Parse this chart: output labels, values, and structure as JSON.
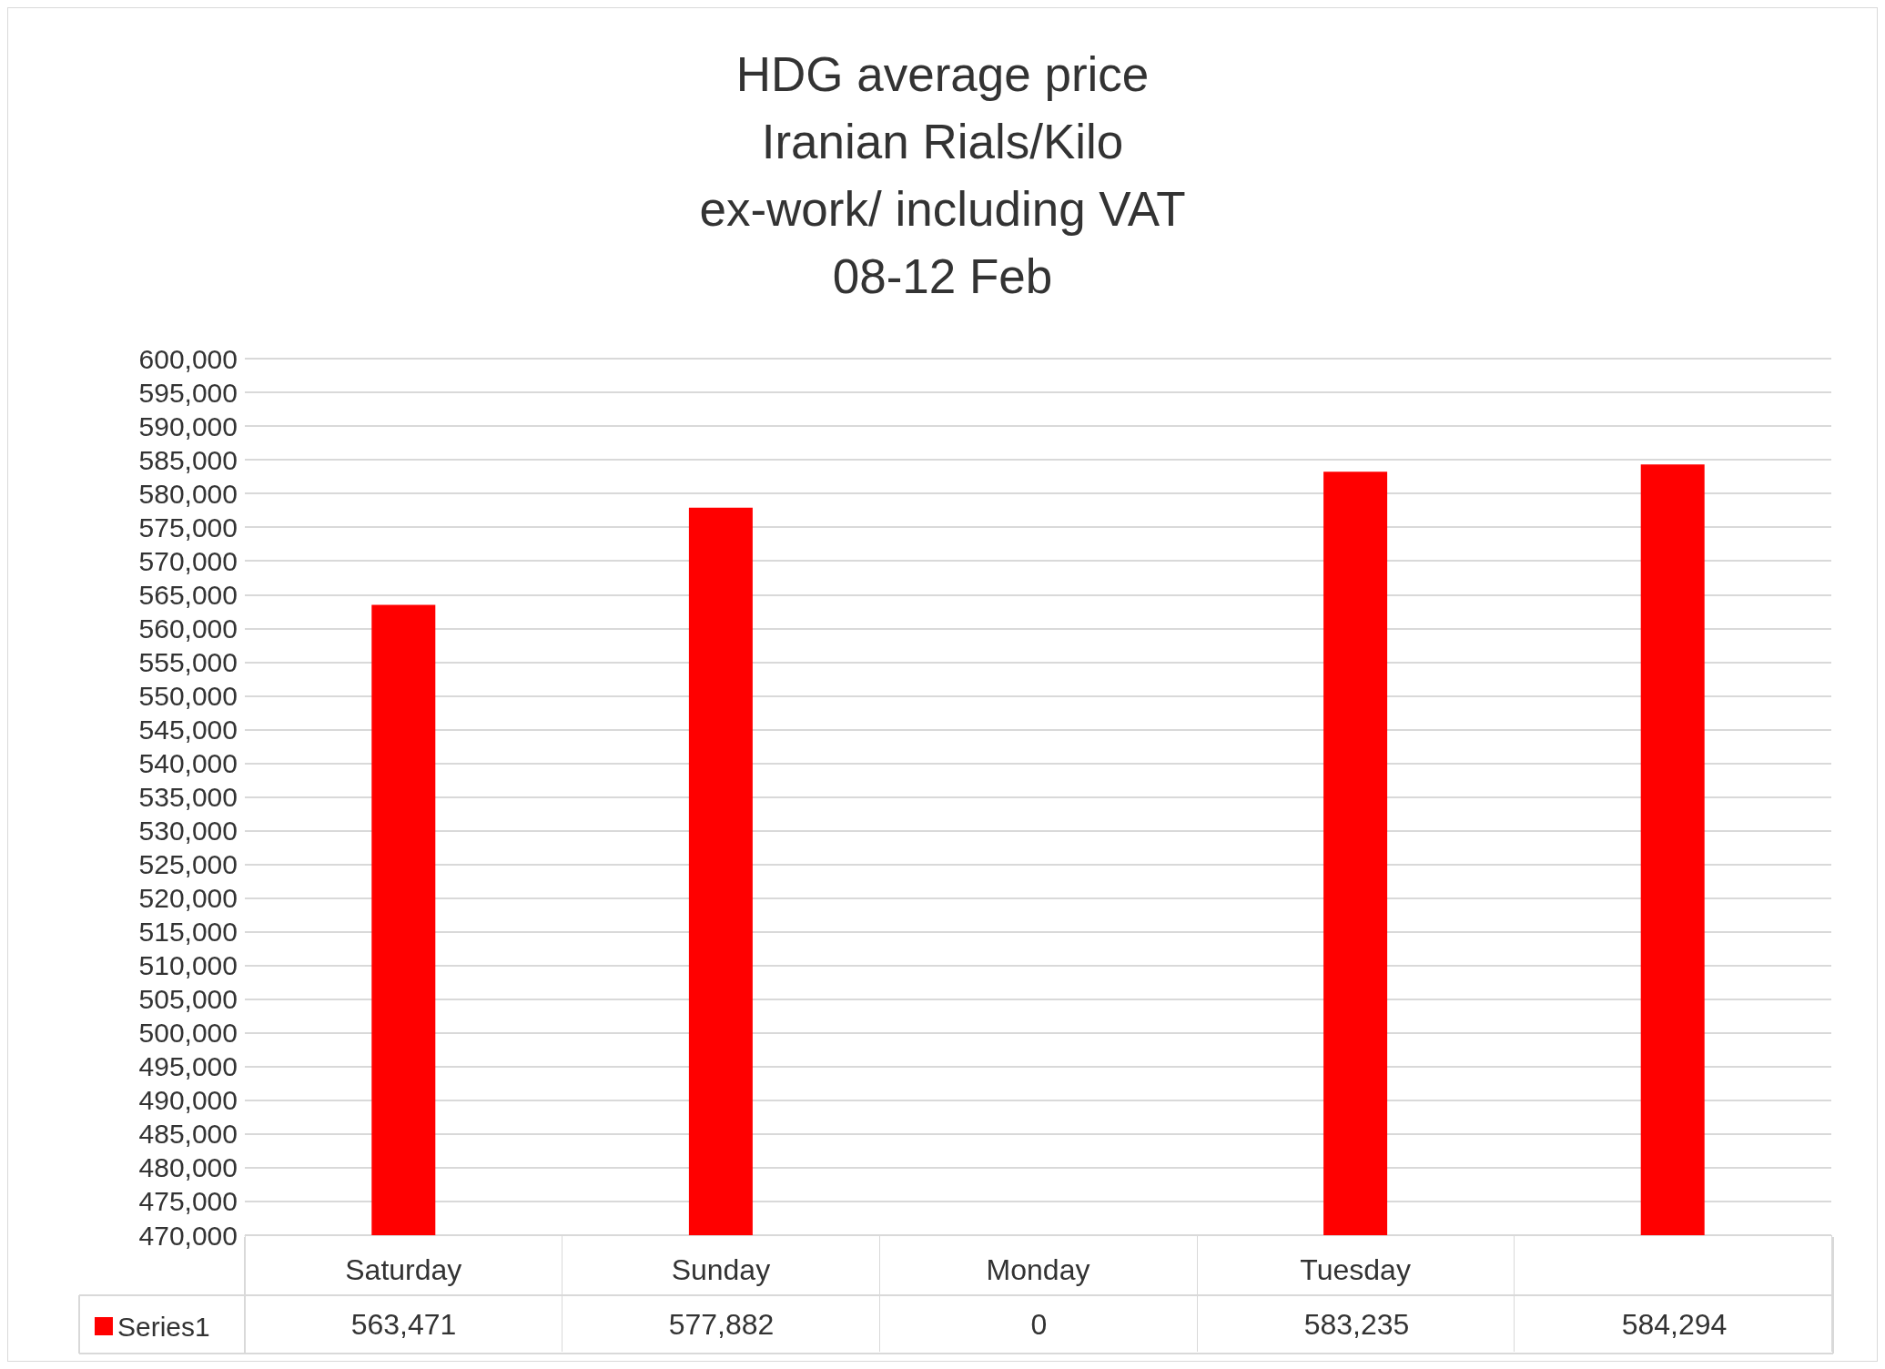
{
  "chart_data": {
    "type": "bar",
    "title": "HDG average price\nIranian Rials/Kilo\nex-work/ including VAT\n08-12 Feb",
    "categories": [
      "Saturday",
      "Sunday",
      "Monday",
      "Tuesday",
      null
    ],
    "series": [
      {
        "name": "Series1",
        "color": "#ff0000",
        "values": [
          563471,
          577882,
          null,
          583235,
          584294
        ],
        "value_labels": [
          "563,471",
          "577,882",
          "0",
          "583,235",
          "584,294"
        ]
      }
    ],
    "ylim": [
      470000,
      600000
    ],
    "yticks": [
      {
        "value": 470000,
        "label": "470,000"
      },
      {
        "value": 475000,
        "label": "475,000"
      },
      {
        "value": 480000,
        "label": "480,000"
      },
      {
        "value": 485000,
        "label": "485,000"
      },
      {
        "value": 490000,
        "label": "490,000"
      },
      {
        "value": 495000,
        "label": "495,000"
      },
      {
        "value": 500000,
        "label": "500,000"
      },
      {
        "value": 505000,
        "label": "505,000"
      },
      {
        "value": 510000,
        "label": "510,000"
      },
      {
        "value": 515000,
        "label": "515,000"
      },
      {
        "value": 520000,
        "label": "520,000"
      },
      {
        "value": 525000,
        "label": "525,000"
      },
      {
        "value": 530000,
        "label": "530,000"
      },
      {
        "value": 535000,
        "label": "535,000"
      },
      {
        "value": 540000,
        "label": "540,000"
      },
      {
        "value": 545000,
        "label": "545,000"
      },
      {
        "value": 550000,
        "label": "550,000"
      },
      {
        "value": 555000,
        "label": "555,000"
      },
      {
        "value": 560000,
        "label": "560,000"
      },
      {
        "value": 565000,
        "label": "565,000"
      },
      {
        "value": 570000,
        "label": "570,000"
      },
      {
        "value": 575000,
        "label": "575,000"
      },
      {
        "value": 580000,
        "label": "580,000"
      },
      {
        "value": 585000,
        "label": "585,000"
      },
      {
        "value": 590000,
        "label": "590,000"
      },
      {
        "value": 595000,
        "label": "595,000"
      },
      {
        "value": 600000,
        "label": "600,000"
      }
    ],
    "grid": "y",
    "legend": "bottom"
  }
}
